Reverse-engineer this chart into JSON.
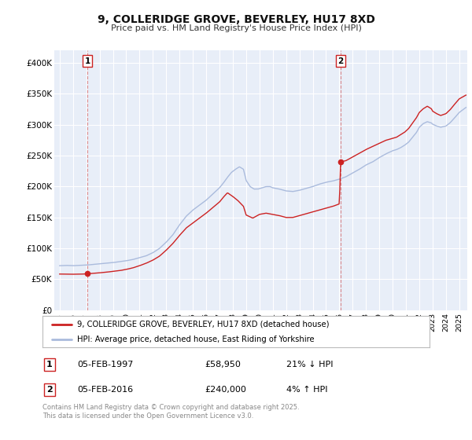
{
  "title": "9, COLLERIDGE GROVE, BEVERLEY, HU17 8XD",
  "subtitle": "Price paid vs. HM Land Registry's House Price Index (HPI)",
  "background_color": "#ffffff",
  "plot_bg_color": "#e8eef8",
  "grid_color": "#ffffff",
  "sale1_date": 1997.09,
  "sale1_price": 58950,
  "sale2_date": 2016.09,
  "sale2_price": 240000,
  "sale1_vline_color": "#cc4444",
  "sale2_vline_color": "#cc4444",
  "legend_line_colors": [
    "#cc2222",
    "#aabbdd"
  ],
  "legend_entries": [
    "9, COLLERIDGE GROVE, BEVERLEY, HU17 8XD (detached house)",
    "HPI: Average price, detached house, East Riding of Yorkshire"
  ],
  "annotation1": [
    "1",
    "05-FEB-1997",
    "£58,950",
    "21% ↓ HPI"
  ],
  "annotation2": [
    "2",
    "05-FEB-2016",
    "£240,000",
    "4% ↑ HPI"
  ],
  "footer": "Contains HM Land Registry data © Crown copyright and database right 2025.\nThis data is licensed under the Open Government Licence v3.0.",
  "ylim": [
    0,
    420000
  ],
  "xlim": [
    1994.6,
    2025.6
  ],
  "yticks": [
    0,
    50000,
    100000,
    150000,
    200000,
    250000,
    300000,
    350000,
    400000
  ],
  "ytick_labels": [
    "£0",
    "£50K",
    "£100K",
    "£150K",
    "£200K",
    "£250K",
    "£300K",
    "£350K",
    "£400K"
  ],
  "xticks": [
    1995,
    1996,
    1997,
    1998,
    1999,
    2000,
    2001,
    2002,
    2003,
    2004,
    2005,
    2006,
    2007,
    2008,
    2009,
    2010,
    2011,
    2012,
    2013,
    2014,
    2015,
    2016,
    2017,
    2018,
    2019,
    2020,
    2021,
    2022,
    2023,
    2024,
    2025
  ],
  "hpi_color": "#aabbdd",
  "price_color": "#cc2222",
  "marker_color": "#cc2222"
}
